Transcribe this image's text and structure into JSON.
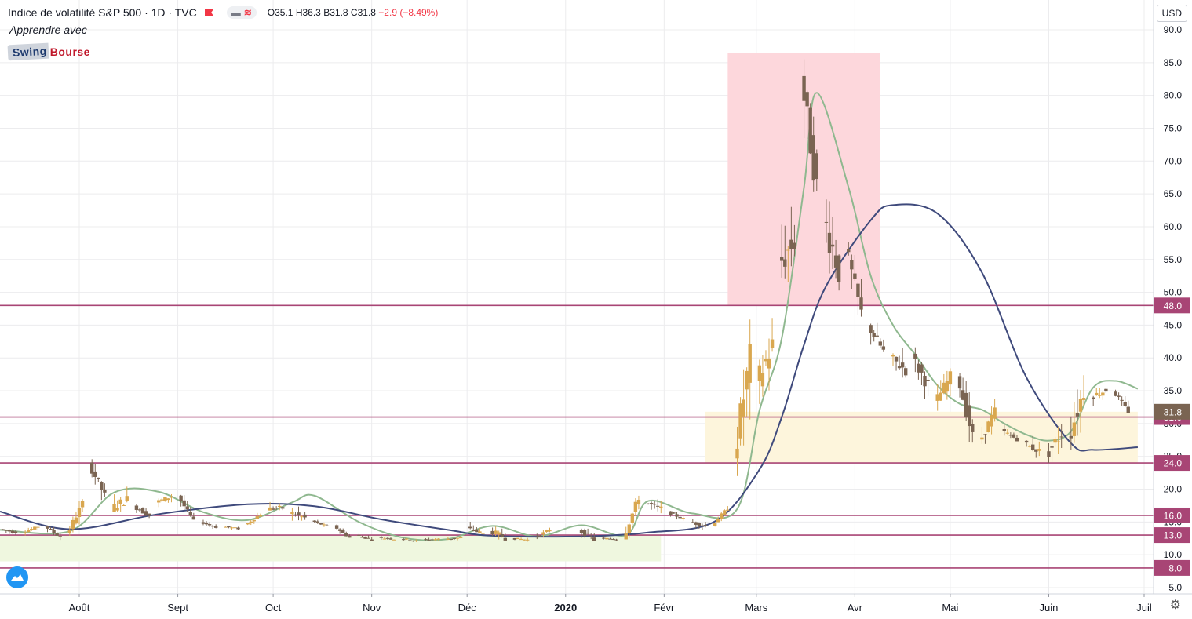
{
  "header": {
    "title": "Indice de volatilité S&P 500 · 1D · TVC",
    "ohlc": {
      "o_label": "O",
      "o": "35.1",
      "h_label": "H",
      "h": "36.3",
      "l_label": "B",
      "l": "31.8",
      "c_label": "C",
      "c": "31.8",
      "change": "−2.9 (−8.49%)"
    }
  },
  "promo": {
    "line1": "Apprendre avec",
    "logo_part1": "Swing",
    "logo_part2": "Bourse"
  },
  "currency_button": "USD",
  "colors": {
    "bull": "#d9a74f",
    "bear": "#7a6452",
    "ma_fast": "#8fb88f",
    "ma_slow": "#3f4a7c",
    "level": "#a84575",
    "red_zone": "#fdd7dc",
    "yellow_zone": "#fdf5dc",
    "green_zone": "#eff7df"
  },
  "chart_data": {
    "type": "candlestick",
    "title": "Indice de volatilité S&P 500",
    "ylim": [
      5,
      90
    ],
    "y_ticks": [
      5,
      10,
      15,
      20,
      25,
      30,
      35,
      40,
      45,
      50,
      55,
      60,
      65,
      70,
      75,
      80,
      85,
      90
    ],
    "x_tick_labels": [
      "Août",
      "Sept",
      "Oct",
      "Nov",
      "Déc",
      "2020",
      "Févr",
      "Mars",
      "Avr",
      "Mai",
      "Juin",
      "Juil"
    ],
    "x_tick_dates": [
      "2019-08-01",
      "2019-09-01",
      "2019-10-01",
      "2019-11-01",
      "2019-12-01",
      "2020-01-01",
      "2020-02-01",
      "2020-03-01",
      "2020-04-01",
      "2020-05-01",
      "2020-06-01",
      "2020-07-01"
    ],
    "date_range": [
      "2019-07-01",
      "2020-06-29"
    ],
    "levels": [
      {
        "value": 48,
        "label": "48.0"
      },
      {
        "value": 31.0,
        "label": "31.0"
      },
      {
        "value": 24.0,
        "label": "24.0"
      },
      {
        "value": 16.0,
        "label": "16.0"
      },
      {
        "value": 13.0,
        "label": "13.0"
      },
      {
        "value": 8.0,
        "label": "8.0"
      }
    ],
    "last_price": {
      "value": 31.8,
      "label": "31.8"
    },
    "zones": [
      {
        "name": "red",
        "x0": "2020-02-21",
        "x1": "2020-04-09",
        "y0": 48,
        "y1": 86.5
      },
      {
        "name": "yellow",
        "x0": "2020-02-14",
        "x1": "2020-06-29",
        "y0": 24,
        "y1": 31.8
      },
      {
        "name": "green",
        "x0": "2019-07-01",
        "x1": "2020-01-31",
        "y0": 9,
        "y1": 13
      }
    ],
    "candles": [
      [
        "2019-07-01",
        14.8,
        15.4,
        13.6,
        14.1
      ],
      [
        "2019-07-08",
        13.9,
        15.0,
        12.7,
        13.4
      ],
      [
        "2019-07-15",
        13.4,
        14.6,
        12.8,
        14.3
      ],
      [
        "2019-07-22",
        14.4,
        14.9,
        12.1,
        12.7
      ],
      [
        "2019-07-29",
        13.0,
        18.5,
        12.9,
        17.9
      ],
      [
        "2019-08-05",
        24.0,
        25.0,
        17.5,
        19.0
      ],
      [
        "2019-08-12",
        17.0,
        24.6,
        16.6,
        18.5
      ],
      [
        "2019-08-19",
        17.5,
        20.2,
        15.6,
        16.0
      ],
      [
        "2019-08-26",
        18.0,
        20.4,
        16.8,
        18.9
      ],
      [
        "2019-09-02",
        19.0,
        20.0,
        15.8,
        15.0
      ],
      [
        "2019-09-09",
        15.0,
        15.4,
        13.9,
        14.2
      ],
      [
        "2019-09-16",
        14.3,
        15.2,
        13.5,
        14.0
      ],
      [
        "2019-09-23",
        14.5,
        17.0,
        14.4,
        16.2
      ],
      [
        "2019-09-30",
        17.0,
        21.5,
        16.8,
        17.1
      ],
      [
        "2019-10-07",
        16.5,
        20.6,
        15.2,
        15.6
      ],
      [
        "2019-10-14",
        15.2,
        15.4,
        13.4,
        14.3
      ],
      [
        "2019-10-21",
        14.4,
        14.9,
        12.8,
        12.6
      ],
      [
        "2019-10-28",
        13.0,
        14.5,
        12.5,
        12.3
      ],
      [
        "2019-11-04",
        12.6,
        13.2,
        12.3,
        12.4
      ],
      [
        "2019-11-11",
        12.5,
        13.0,
        11.8,
        12.1
      ],
      [
        "2019-11-18",
        12.3,
        13.3,
        12.2,
        12.4
      ],
      [
        "2019-11-25",
        12.4,
        13.0,
        11.6,
        12.6
      ],
      [
        "2019-12-02",
        14.0,
        17.9,
        13.9,
        13.2
      ],
      [
        "2019-12-09",
        13.7,
        17.0,
        12.1,
        12.6
      ],
      [
        "2019-12-16",
        12.5,
        12.9,
        12.0,
        12.3
      ],
      [
        "2019-12-23",
        12.6,
        14.3,
        11.8,
        13.8
      ],
      [
        "2020-01-06",
        13.8,
        16.2,
        12.4,
        12.3
      ],
      [
        "2020-01-13",
        12.5,
        13.0,
        11.8,
        12.4
      ],
      [
        "2020-01-20",
        12.5,
        19.0,
        12.4,
        18.8
      ],
      [
        "2020-01-27",
        18.0,
        20.6,
        15.3,
        17.0
      ],
      [
        "2020-02-03",
        16.5,
        17.0,
        14.8,
        15.5
      ],
      [
        "2020-02-10",
        15.0,
        16.8,
        13.7,
        14.4
      ],
      [
        "2020-02-17",
        14.5,
        17.5,
        14.3,
        17.1
      ],
      [
        "2020-02-24",
        25.0,
        49.5,
        22.0,
        40.1
      ],
      [
        "2020-03-02",
        36.0,
        54.4,
        31.9,
        41.9
      ],
      [
        "2020-03-09",
        54.0,
        76.0,
        47.0,
        57.8
      ],
      [
        "2020-03-16",
        83.0,
        85.5,
        57.0,
        66.0
      ],
      [
        "2020-03-23",
        61.6,
        66.0,
        36.0,
        53.5
      ],
      [
        "2020-03-30",
        57.0,
        57.6,
        43.0,
        46.8
      ],
      [
        "2020-04-06",
        45.0,
        46.9,
        37.5,
        41.0
      ],
      [
        "2020-04-13",
        40.0,
        48.2,
        37.0,
        38.2
      ],
      [
        "2020-04-20",
        40.0,
        45.9,
        33.7,
        35.9
      ],
      [
        "2020-04-27",
        33.0,
        40.4,
        31.0,
        37.2
      ],
      [
        "2020-05-04",
        38.0,
        40.0,
        27.1,
        27.9
      ],
      [
        "2020-05-11",
        27.0,
        35.1,
        26.9,
        31.9
      ],
      [
        "2020-05-18",
        29.0,
        31.0,
        27.5,
        27.6
      ],
      [
        "2020-05-25",
        27.0,
        30.5,
        24.0,
        25.8
      ],
      [
        "2020-06-01",
        25.0,
        36.0,
        24.0,
        28.5
      ],
      [
        "2020-06-08",
        27.5,
        44.4,
        26.0,
        35.1
      ],
      [
        "2020-06-15",
        34.0,
        36.0,
        30.0,
        35.1
      ],
      [
        "2020-06-22",
        35.1,
        36.3,
        31.8,
        31.8
      ]
    ],
    "series": [
      {
        "name": "MA fast",
        "points": [
          [
            "2019-07-01",
            13.8
          ],
          [
            "2019-07-29",
            13.6
          ],
          [
            "2019-08-12",
            19.5
          ],
          [
            "2019-08-26",
            19.6
          ],
          [
            "2019-09-09",
            16.5
          ],
          [
            "2019-09-23",
            15.3
          ],
          [
            "2019-10-07",
            18.0
          ],
          [
            "2019-10-14",
            19.0
          ],
          [
            "2019-10-28",
            15.0
          ],
          [
            "2019-11-11",
            12.6
          ],
          [
            "2019-11-25",
            12.4
          ],
          [
            "2019-12-09",
            14.4
          ],
          [
            "2019-12-23",
            12.8
          ],
          [
            "2020-01-06",
            14.5
          ],
          [
            "2020-01-20",
            13.0
          ],
          [
            "2020-01-27",
            18.2
          ],
          [
            "2020-02-10",
            16.3
          ],
          [
            "2020-02-24",
            17.0
          ],
          [
            "2020-03-02",
            32.0
          ],
          [
            "2020-03-09",
            43.0
          ],
          [
            "2020-03-16",
            66.0
          ],
          [
            "2020-03-20",
            80.4
          ],
          [
            "2020-03-30",
            66.0
          ],
          [
            "2020-04-06",
            52.5
          ],
          [
            "2020-04-13",
            45.0
          ],
          [
            "2020-04-20",
            40.5
          ],
          [
            "2020-04-27",
            35.8
          ],
          [
            "2020-05-04",
            33.0
          ],
          [
            "2020-05-11",
            32.1
          ],
          [
            "2020-05-18",
            30.0
          ],
          [
            "2020-05-25",
            28.3
          ],
          [
            "2020-06-01",
            27.4
          ],
          [
            "2020-06-08",
            28.8
          ],
          [
            "2020-06-15",
            35.5
          ],
          [
            "2020-06-22",
            36.5
          ],
          [
            "2020-06-29",
            35.3
          ]
        ]
      },
      {
        "name": "MA slow",
        "points": [
          [
            "2019-07-01",
            16.6
          ],
          [
            "2019-07-29",
            13.9
          ],
          [
            "2019-08-26",
            16.2
          ],
          [
            "2019-09-23",
            17.7
          ],
          [
            "2019-10-14",
            17.4
          ],
          [
            "2019-11-04",
            15.4
          ],
          [
            "2019-11-25",
            13.8
          ],
          [
            "2019-12-09",
            12.9
          ],
          [
            "2020-01-06",
            12.8
          ],
          [
            "2020-01-27",
            13.4
          ],
          [
            "2020-02-17",
            15.1
          ],
          [
            "2020-03-02",
            23.0
          ],
          [
            "2020-03-09",
            31.0
          ],
          [
            "2020-03-16",
            42.0
          ],
          [
            "2020-03-23",
            51.0
          ],
          [
            "2020-04-06",
            61.0
          ],
          [
            "2020-04-13",
            63.3
          ],
          [
            "2020-04-27",
            62.0
          ],
          [
            "2020-05-11",
            53.0
          ],
          [
            "2020-05-25",
            37.0
          ],
          [
            "2020-06-08",
            27.0
          ],
          [
            "2020-06-15",
            26.0
          ],
          [
            "2020-06-29",
            26.4
          ]
        ]
      }
    ]
  }
}
